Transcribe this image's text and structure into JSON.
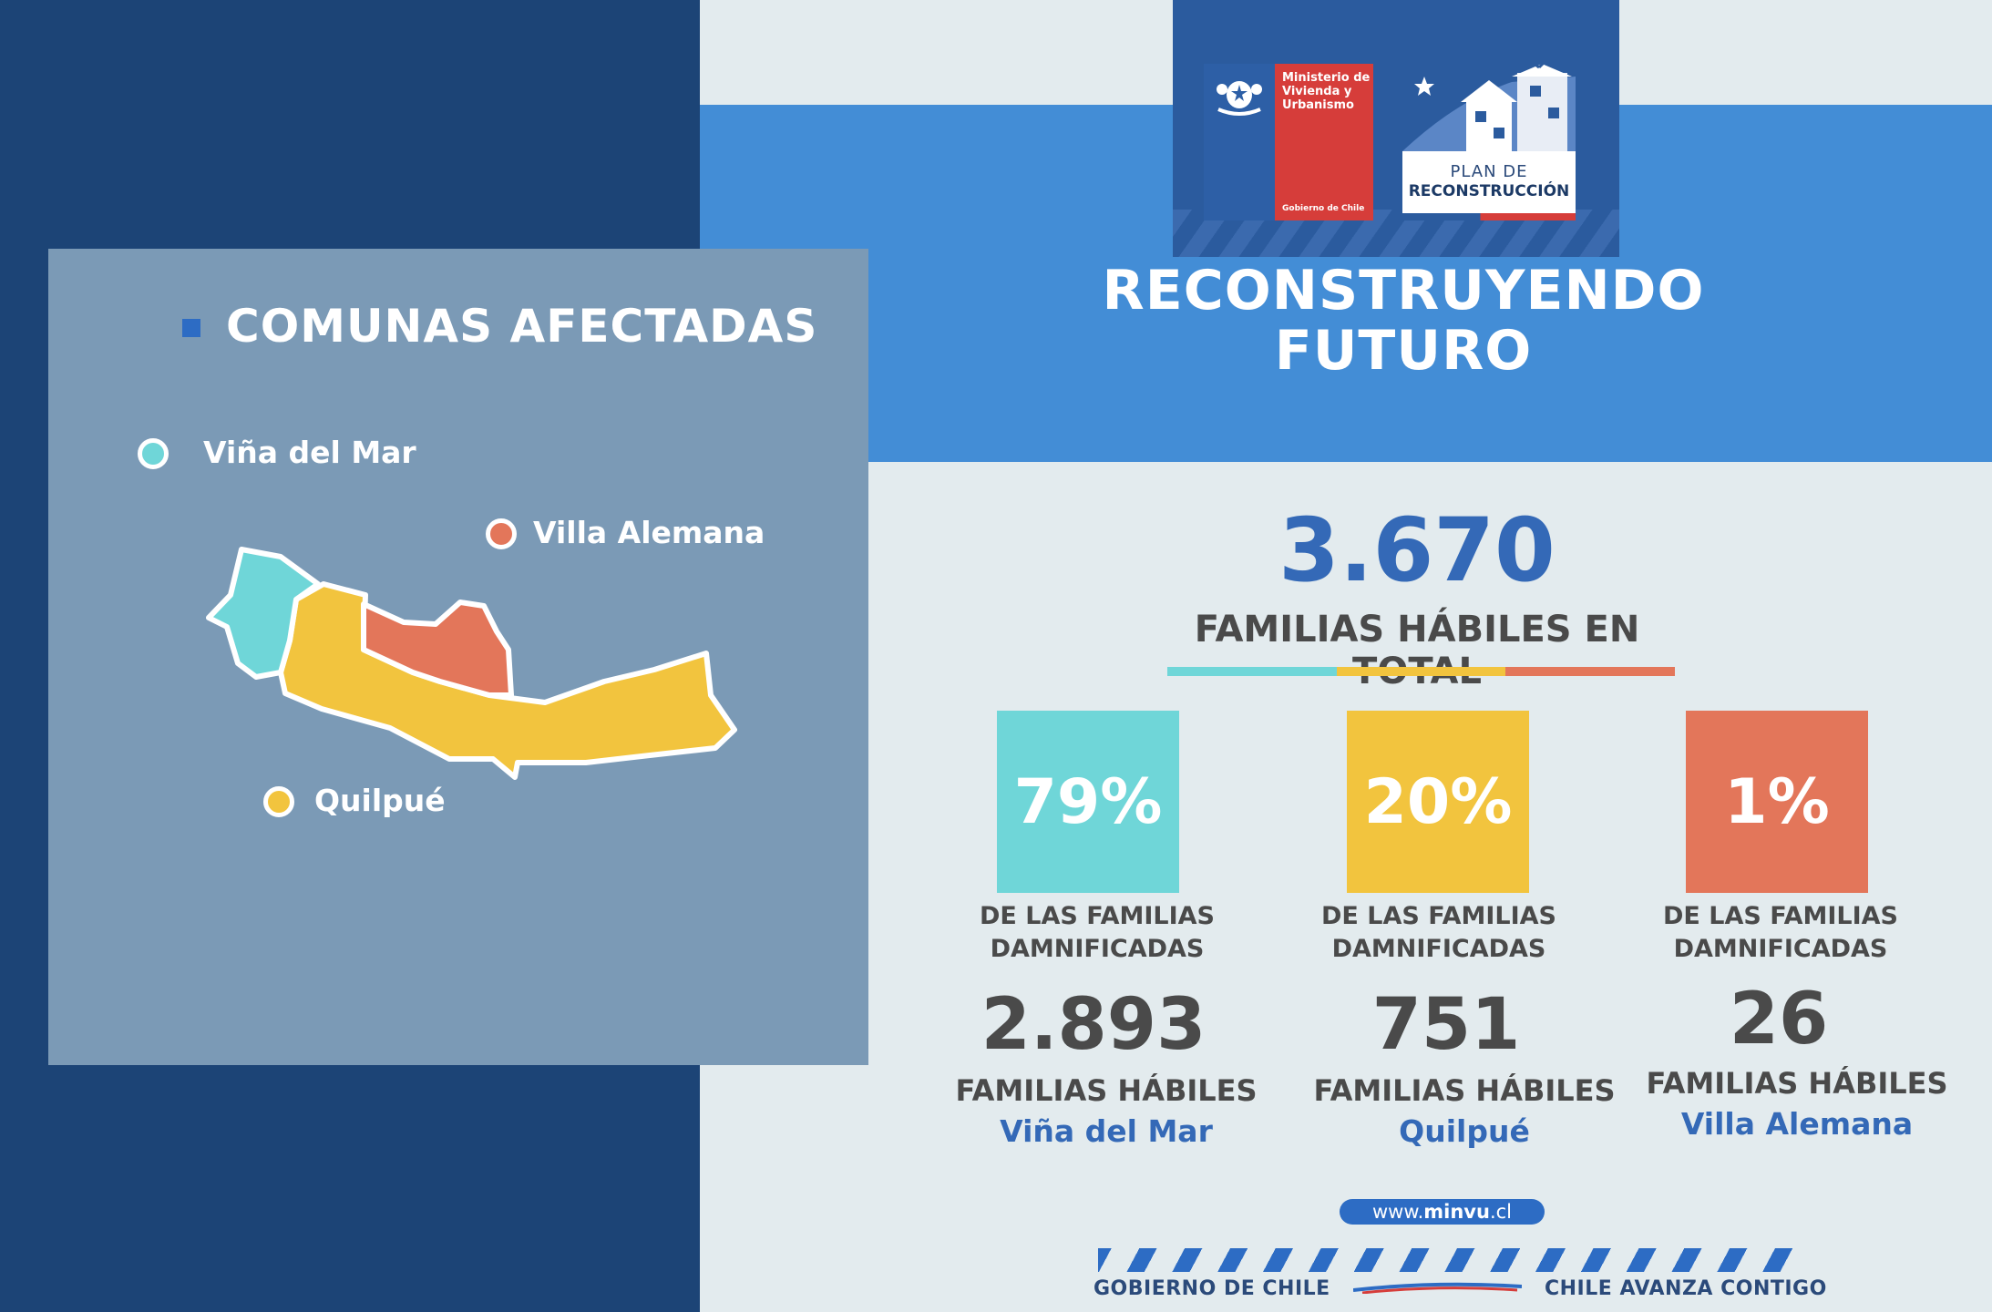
{
  "logo": {
    "ministry": "Ministerio de Vivienda y Urbanismo",
    "ministry_footer": "Gobierno de Chile",
    "plan_line1": "PLAN DE",
    "plan_line2": "RECONSTRUCCIÓN"
  },
  "headline": {
    "line1": "RECONSTRUYENDO",
    "line2": "FUTURO"
  },
  "map": {
    "title": "COMUNAS AFECTADAS",
    "legend": [
      {
        "label": "Viña del Mar",
        "color": "#6fd6d8"
      },
      {
        "label": "Villa Alemana",
        "color": "#e3765a"
      },
      {
        "label": "Quilpué",
        "color": "#f2c43e"
      }
    ]
  },
  "summary": {
    "total": "3.670",
    "total_label": "FAMILIAS HÁBILES EN TOTAL"
  },
  "stats": [
    {
      "percent": "79%",
      "percent_label": "DE LAS FAMILIAS DAMNIFICADAS",
      "count": "2.893",
      "count_label": "FAMILIAS HÁBILES",
      "commune": "Viña del Mar",
      "color": "#6fd6d8"
    },
    {
      "percent": "20%",
      "percent_label": "DE LAS FAMILIAS DAMNIFICADAS",
      "count": "751",
      "count_label": "FAMILIAS HÁBILES",
      "commune": "Quilpué",
      "color": "#f2c43e"
    },
    {
      "percent": "1%",
      "percent_label": "DE LAS FAMILIAS DAMNIFICADAS",
      "count": "26",
      "count_label": "FAMILIAS HÁBILES",
      "commune": "Villa Alemana",
      "color": "#e3765a"
    }
  ],
  "footer": {
    "url_prefix": "www.",
    "url_bold": "minvu",
    "url_suffix": ".cl",
    "left": "GOBIERNO DE CHILE",
    "right": "CHILE AVANZA CONTIGO"
  },
  "colors": {
    "navy": "#1c4476",
    "band_blue": "#438dd6",
    "accent_blue": "#3469b7",
    "panel": "#7b9ab6"
  }
}
